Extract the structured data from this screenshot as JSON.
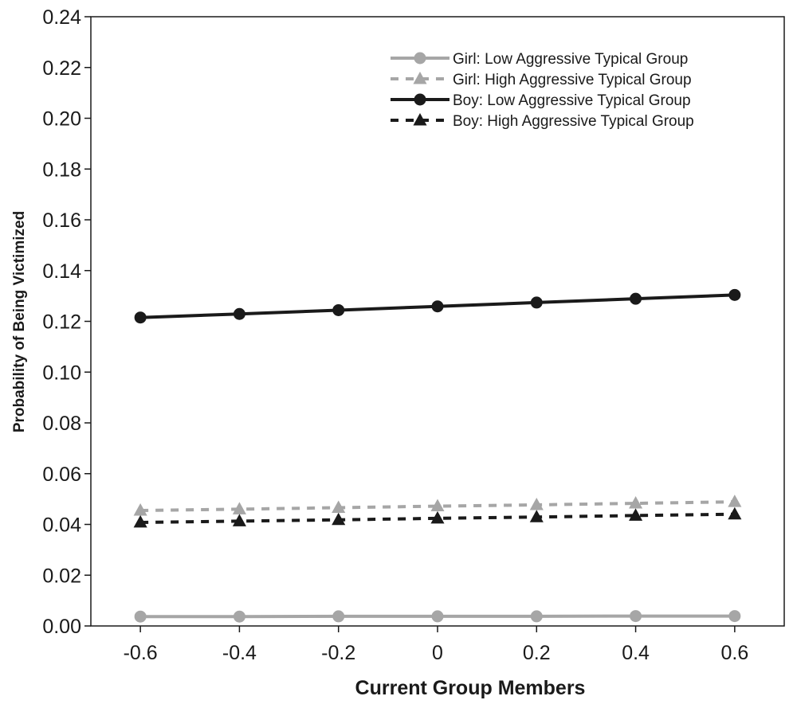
{
  "chart_data": {
    "type": "line",
    "title": "",
    "xlabel": "Current Group Members",
    "ylabel": "Probability of Being Victimized",
    "x": [
      -0.6,
      -0.4,
      -0.2,
      0,
      0.2,
      0.4,
      0.6
    ],
    "x_tick_labels": [
      "-0.6",
      "-0.4",
      "-0.2",
      "0",
      "0.2",
      "0.4",
      "0.6"
    ],
    "xlim": [
      -0.7,
      0.7
    ],
    "ylim": [
      0,
      0.24
    ],
    "y_ticks": [
      0,
      0.02,
      0.04,
      0.06,
      0.08,
      0.1,
      0.12,
      0.14,
      0.16,
      0.18,
      0.2,
      0.22,
      0.24
    ],
    "y_tick_labels": [
      "0.00",
      "0.02",
      "0.04",
      "0.06",
      "0.08",
      "0.10",
      "0.12",
      "0.14",
      "0.16",
      "0.18",
      "0.20",
      "0.22",
      "0.24"
    ],
    "grid": false,
    "legend_position": "top-right",
    "series": [
      {
        "name": "Girl: Low Aggressive Typical Group",
        "values": [
          0.0037,
          0.0037,
          0.0038,
          0.0038,
          0.0038,
          0.0039,
          0.0039
        ],
        "color": "#a6a6a6",
        "line_style": "solid",
        "marker": "circle"
      },
      {
        "name": "Girl: High Aggressive Typical Group",
        "values": [
          0.0455,
          0.046,
          0.0466,
          0.0472,
          0.0477,
          0.0483,
          0.0489
        ],
        "color": "#a6a6a6",
        "line_style": "dashed",
        "marker": "triangle"
      },
      {
        "name": "Boy: Low Aggressive Typical Group",
        "values": [
          0.1215,
          0.1229,
          0.1244,
          0.1259,
          0.1274,
          0.1289,
          0.1304
        ],
        "color": "#1a1a1a",
        "line_style": "solid",
        "marker": "circle"
      },
      {
        "name": "Boy: High Aggressive Typical Group",
        "values": [
          0.0408,
          0.0413,
          0.0418,
          0.0424,
          0.0429,
          0.0435,
          0.044
        ],
        "color": "#1a1a1a",
        "line_style": "dashed",
        "marker": "triangle"
      }
    ]
  }
}
